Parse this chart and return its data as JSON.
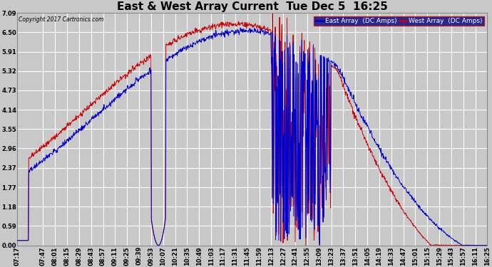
{
  "title": "East & West Array Current  Tue Dec 5  16:25",
  "copyright": "Copyright 2017 Cartronics.com",
  "east_label": "East Array  (DC Amps)",
  "west_label": "West Array  (DC Amps)",
  "east_color": "#0000cc",
  "west_color": "#cc0000",
  "background_color": "#c8c8c8",
  "plot_bg_color": "#c8c8c8",
  "grid_color": "#ffffff",
  "yticks": [
    0.0,
    0.59,
    1.18,
    1.77,
    2.37,
    2.96,
    3.55,
    4.14,
    4.73,
    5.32,
    5.91,
    6.5,
    7.09
  ],
  "ylim": [
    0.0,
    7.09
  ],
  "xtick_labels": [
    "07:17",
    "07:47",
    "08:01",
    "08:15",
    "08:29",
    "08:43",
    "08:57",
    "09:11",
    "09:25",
    "09:39",
    "09:53",
    "10:07",
    "10:21",
    "10:35",
    "10:49",
    "11:03",
    "11:17",
    "11:31",
    "11:45",
    "11:59",
    "12:13",
    "12:27",
    "12:41",
    "12:55",
    "13:09",
    "13:23",
    "13:37",
    "13:51",
    "14:05",
    "14:19",
    "14:33",
    "14:47",
    "15:01",
    "15:15",
    "15:29",
    "15:43",
    "15:57",
    "16:11",
    "16:25"
  ],
  "title_fontsize": 11,
  "tick_fontsize": 6,
  "legend_fontsize": 6.5,
  "linewidth": 0.7
}
